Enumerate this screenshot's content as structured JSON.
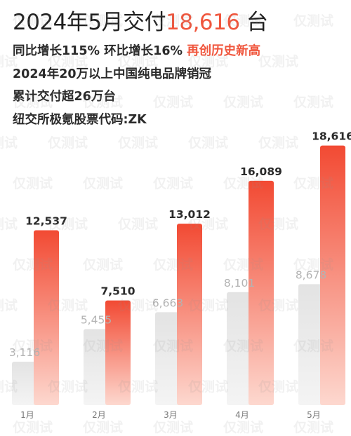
{
  "header": {
    "headline_prefix": "2024年5月交付",
    "headline_value": "18,616",
    "headline_suffix": " 台",
    "line1_main": "同比增长115% 环比增长16% ",
    "line1_highlight": "再创历史新高",
    "line2": "2024年20万以上中国纯电品牌销冠",
    "line3": "累计交付超26万台",
    "line4": "纽交所极氪股票代码:ZK"
  },
  "watermark_text": "仅测试",
  "colors": {
    "accent": "#f0563d",
    "bar_2024_top": "#f24a33",
    "bar_2024_bottom": "#fdd8cf",
    "bar_2023_top": "#e3e3e3",
    "bar_2023_bottom": "#f4f4f4"
  },
  "chart_data": {
    "type": "bar",
    "title": "",
    "xlabel": "",
    "ylabel": "",
    "categories": [
      "1月",
      "2月",
      "3月",
      "4月",
      "5月"
    ],
    "series": [
      {
        "values": [
          3116,
          5455,
          6663,
          8101,
          8678
        ],
        "labels": [
          "3,116",
          "5,455",
          "6,663",
          "8,101",
          "8,678"
        ]
      },
      {
        "values": [
          12537,
          7510,
          13012,
          16089,
          18616
        ],
        "labels": [
          "12,537",
          "7,510",
          "13,012",
          "16,089",
          "18,616"
        ]
      }
    ],
    "ylim": [
      0,
      19500
    ],
    "grid": false,
    "legend": "none"
  }
}
